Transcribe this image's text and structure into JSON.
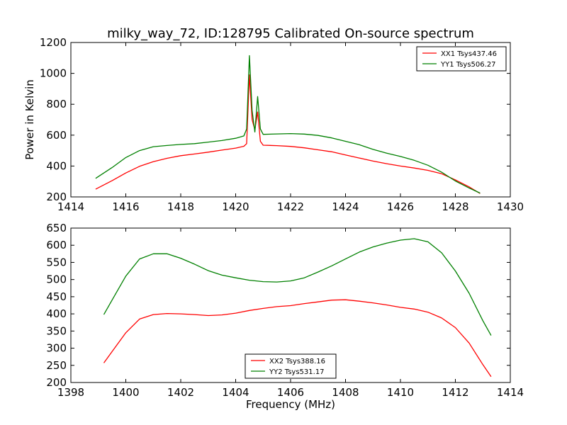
{
  "figure": {
    "title": "milky_way_72, ID:128795 Calibrated On-source spectrum",
    "ylabel_top": "Power in Kelvin",
    "xlabel_bottom": "Frequency (MHz)"
  },
  "chart_data": [
    {
      "type": "line",
      "title": "milky_way_72, ID:128795 Calibrated On-source spectrum",
      "xlabel": "",
      "ylabel": "Power in Kelvin",
      "xlim": [
        1414,
        1430
      ],
      "ylim": [
        200,
        1200
      ],
      "xticks": [
        "1414",
        "1416",
        "1418",
        "1420",
        "1422",
        "1424",
        "1426",
        "1428",
        "1430"
      ],
      "yticks": [
        "200",
        "400",
        "600",
        "800",
        "1000",
        "1200"
      ],
      "grid": false,
      "legend_position": "top-right",
      "series": [
        {
          "name": "XX1 Tsys437.46",
          "color": "#ff0000",
          "points": [
            [
              1414.9,
              250
            ],
            [
              1415.5,
              305
            ],
            [
              1416,
              355
            ],
            [
              1416.5,
              398
            ],
            [
              1417,
              428
            ],
            [
              1417.5,
              450
            ],
            [
              1418,
              467
            ],
            [
              1418.5,
              478
            ],
            [
              1419,
              490
            ],
            [
              1419.5,
              503
            ],
            [
              1420,
              516
            ],
            [
              1420.3,
              528
            ],
            [
              1420.4,
              545
            ],
            [
              1420.5,
              990
            ],
            [
              1420.6,
              700
            ],
            [
              1420.7,
              635
            ],
            [
              1420.8,
              750
            ],
            [
              1420.9,
              560
            ],
            [
              1421,
              535
            ],
            [
              1421.5,
              532
            ],
            [
              1422,
              527
            ],
            [
              1422.5,
              518
            ],
            [
              1423,
              505
            ],
            [
              1423.5,
              492
            ],
            [
              1424,
              472
            ],
            [
              1424.5,
              452
            ],
            [
              1425,
              432
            ],
            [
              1425.5,
              415
            ],
            [
              1426,
              400
            ],
            [
              1426.5,
              387
            ],
            [
              1427,
              372
            ],
            [
              1427.5,
              350
            ],
            [
              1428,
              310
            ],
            [
              1428.5,
              265
            ],
            [
              1428.9,
              222
            ]
          ]
        },
        {
          "name": "YY1 Tsys506.27",
          "color": "#008000",
          "points": [
            [
              1414.9,
              320
            ],
            [
              1415.5,
              390
            ],
            [
              1416,
              455
            ],
            [
              1416.5,
              500
            ],
            [
              1417,
              525
            ],
            [
              1417.5,
              533
            ],
            [
              1418,
              540
            ],
            [
              1418.5,
              545
            ],
            [
              1419,
              555
            ],
            [
              1419.5,
              565
            ],
            [
              1420,
              580
            ],
            [
              1420.3,
              595
            ],
            [
              1420.4,
              640
            ],
            [
              1420.5,
              1115
            ],
            [
              1420.6,
              760
            ],
            [
              1420.7,
              620
            ],
            [
              1420.8,
              850
            ],
            [
              1420.9,
              640
            ],
            [
              1421,
              605
            ],
            [
              1421.5,
              608
            ],
            [
              1422,
              610
            ],
            [
              1422.5,
              607
            ],
            [
              1423,
              598
            ],
            [
              1423.5,
              582
            ],
            [
              1424,
              560
            ],
            [
              1424.5,
              538
            ],
            [
              1425,
              508
            ],
            [
              1425.5,
              483
            ],
            [
              1426,
              462
            ],
            [
              1426.5,
              437
            ],
            [
              1427,
              405
            ],
            [
              1427.5,
              360
            ],
            [
              1428,
              303
            ],
            [
              1428.5,
              258
            ],
            [
              1428.9,
              225
            ]
          ]
        }
      ]
    },
    {
      "type": "line",
      "title": "",
      "xlabel": "Frequency (MHz)",
      "ylabel": "",
      "xlim": [
        1398,
        1414
      ],
      "ylim": [
        200,
        650
      ],
      "xticks": [
        "1398",
        "1400",
        "1402",
        "1404",
        "1406",
        "1408",
        "1410",
        "1412",
        "1414"
      ],
      "yticks": [
        "200",
        "250",
        "300",
        "350",
        "400",
        "450",
        "500",
        "550",
        "600",
        "650"
      ],
      "grid": false,
      "legend_position": "bottom-center",
      "series": [
        {
          "name": "XX2 Tsys388.16",
          "color": "#ff0000",
          "points": [
            [
              1399.2,
              257
            ],
            [
              1399.5,
              290
            ],
            [
              1400,
              345
            ],
            [
              1400.5,
              385
            ],
            [
              1401,
              398
            ],
            [
              1401.5,
              401
            ],
            [
              1402,
              400
            ],
            [
              1402.5,
              398
            ],
            [
              1403,
              395
            ],
            [
              1403.5,
              397
            ],
            [
              1404,
              402
            ],
            [
              1404.5,
              410
            ],
            [
              1405,
              416
            ],
            [
              1405.5,
              421
            ],
            [
              1406,
              424
            ],
            [
              1406.5,
              430
            ],
            [
              1407,
              435
            ],
            [
              1407.5,
              440
            ],
            [
              1408,
              441
            ],
            [
              1408.5,
              437
            ],
            [
              1409,
              432
            ],
            [
              1409.5,
              426
            ],
            [
              1410,
              419
            ],
            [
              1410.5,
              414
            ],
            [
              1411,
              405
            ],
            [
              1411.5,
              388
            ],
            [
              1412,
              360
            ],
            [
              1412.5,
              315
            ],
            [
              1413,
              252
            ],
            [
              1413.3,
              217
            ]
          ]
        },
        {
          "name": "YY2 Tsys531.17",
          "color": "#008000",
          "points": [
            [
              1399.2,
              398
            ],
            [
              1399.5,
              440
            ],
            [
              1400,
              510
            ],
            [
              1400.5,
              560
            ],
            [
              1401,
              575
            ],
            [
              1401.5,
              575
            ],
            [
              1402,
              562
            ],
            [
              1402.5,
              545
            ],
            [
              1403,
              526
            ],
            [
              1403.5,
              513
            ],
            [
              1404,
              505
            ],
            [
              1404.5,
              498
            ],
            [
              1405,
              494
            ],
            [
              1405.5,
              493
            ],
            [
              1406,
              496
            ],
            [
              1406.5,
              505
            ],
            [
              1407,
              522
            ],
            [
              1407.5,
              540
            ],
            [
              1408,
              560
            ],
            [
              1408.5,
              580
            ],
            [
              1409,
              595
            ],
            [
              1409.5,
              606
            ],
            [
              1410,
              615
            ],
            [
              1410.5,
              619
            ],
            [
              1411,
              610
            ],
            [
              1411.5,
              578
            ],
            [
              1412,
              525
            ],
            [
              1412.5,
              460
            ],
            [
              1413,
              380
            ],
            [
              1413.3,
              337
            ]
          ]
        }
      ]
    }
  ]
}
